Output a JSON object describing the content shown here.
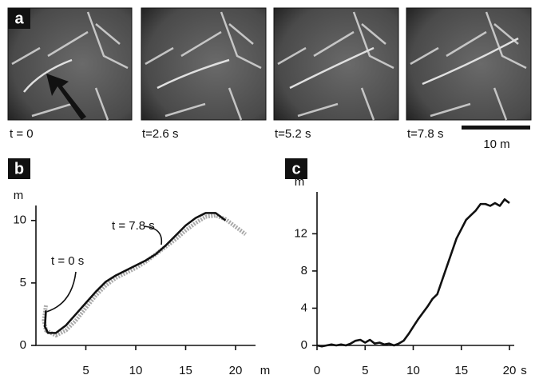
{
  "figure": {
    "panel_a": {
      "letter": "a",
      "frames": [
        "t = 0",
        "t=2.6 s",
        "t=5.2 s",
        "t=7.8 s"
      ],
      "scale_bar": "10  m"
    },
    "panel_b": {
      "letter": "b"
    },
    "panel_c": {
      "letter": "c"
    }
  },
  "chart_data": [
    {
      "type": "line",
      "x_unit": "m",
      "y_unit": "m",
      "xlim": [
        0,
        22
      ],
      "ylim": [
        0,
        11.2
      ],
      "xticks": [
        5,
        10,
        15,
        20
      ],
      "yticks": [
        0,
        5,
        10
      ],
      "annotations": [
        "t = 7.8 s",
        "t = 0 s"
      ],
      "series": [
        {
          "color": "#aaaaaa",
          "line_style": "dotted",
          "x": [
            1.0,
            0.8,
            1.0,
            2.0,
            3.0,
            4.0,
            5.0,
            6.0,
            7.0,
            8.0,
            9.0,
            10.0,
            11.0,
            12.0,
            13.0,
            14.0,
            15.0,
            16.0,
            17.0,
            18.0,
            19.0,
            20.0,
            21.0
          ],
          "values": [
            3.2,
            2.0,
            1.2,
            0.8,
            1.2,
            2.0,
            3.0,
            4.0,
            4.8,
            5.4,
            5.8,
            6.2,
            6.7,
            7.3,
            7.9,
            8.5,
            9.2,
            9.8,
            10.3,
            10.4,
            10.1,
            9.5,
            8.9
          ]
        },
        {
          "color": "#111111",
          "line_style": "solid",
          "x": [
            1.0,
            0.9,
            1.2,
            2.0,
            3.0,
            4.0,
            5.0,
            6.0,
            7.0,
            8.0,
            9.0,
            10.0,
            11.0,
            12.0,
            13.0,
            14.0,
            15.0,
            16.0,
            17.0,
            18.0,
            19.0
          ],
          "values": [
            2.8,
            1.5,
            1.0,
            1.0,
            1.6,
            2.5,
            3.4,
            4.3,
            5.1,
            5.6,
            6.0,
            6.4,
            6.8,
            7.3,
            8.0,
            8.8,
            9.6,
            10.2,
            10.6,
            10.6,
            10.0
          ]
        }
      ]
    },
    {
      "type": "line",
      "x_unit": "s",
      "y_unit": "m",
      "xlim": [
        0,
        20.5
      ],
      "ylim": [
        0,
        16.5
      ],
      "xticks": [
        0,
        5,
        10,
        15,
        20
      ],
      "yticks": [
        0,
        4,
        8,
        12
      ],
      "series": [
        {
          "color": "#111111",
          "line_style": "solid",
          "x": [
            0,
            0.5,
            1,
            1.5,
            2,
            2.5,
            3,
            3.5,
            4,
            4.5,
            5,
            5.5,
            6,
            6.5,
            7,
            7.5,
            8,
            8.5,
            9,
            9.5,
            10,
            10.5,
            11,
            11.5,
            12,
            12.5,
            13,
            13.5,
            14,
            14.5,
            15,
            15.5,
            16,
            16.5,
            17,
            17.5,
            18,
            18.5,
            19,
            19.5,
            20
          ],
          "values": [
            0,
            -0.1,
            0,
            0.1,
            0,
            0.1,
            0,
            0.2,
            0.5,
            0.6,
            0.3,
            0.6,
            0.2,
            0.3,
            0.1,
            0.2,
            0,
            0.2,
            0.5,
            1.2,
            2.0,
            2.8,
            3.5,
            4.2,
            5.0,
            5.5,
            7.0,
            8.5,
            10.0,
            11.5,
            12.5,
            13.5,
            14.0,
            14.5,
            15.2,
            15.2,
            15.0,
            15.3,
            15.0,
            15.7,
            15.3
          ]
        }
      ]
    }
  ]
}
